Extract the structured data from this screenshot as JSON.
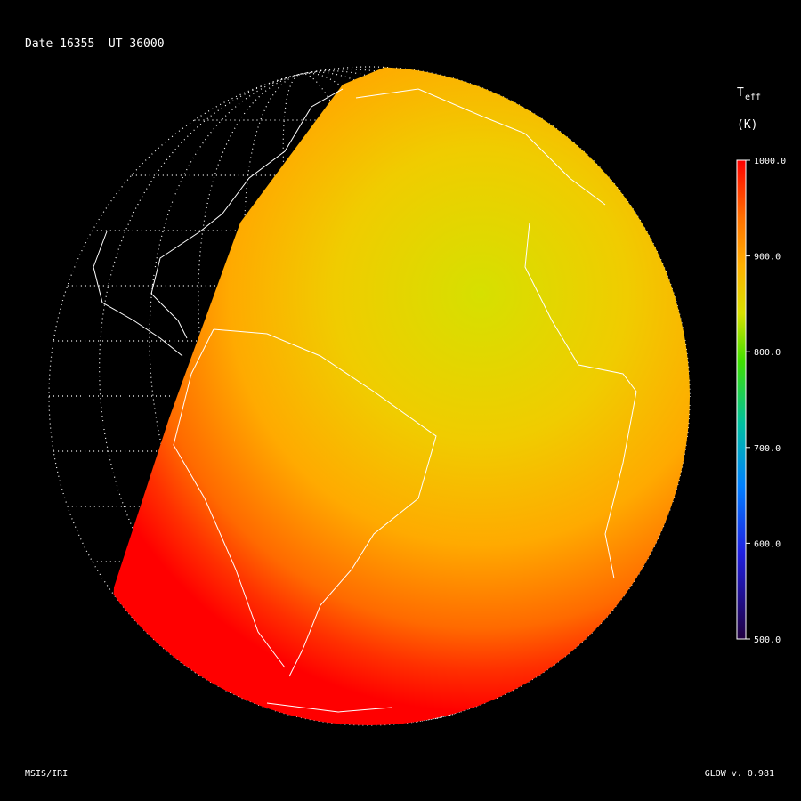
{
  "header": {
    "date_label": "Date 16355  UT 36000"
  },
  "colorbar": {
    "symbol": "T",
    "subscript": "eff",
    "unit": "(K)",
    "lim": [
      500,
      1000
    ],
    "ticks": [
      {
        "value": 1000,
        "label": "1000.0"
      },
      {
        "value": 900,
        "label": "900.0"
      },
      {
        "value": 800,
        "label": "800.0"
      },
      {
        "value": 700,
        "label": "700.0"
      },
      {
        "value": 600,
        "label": "600.0"
      },
      {
        "value": 500,
        "label": "500.0"
      }
    ]
  },
  "footer": {
    "left": "MSIS/IRI",
    "right": "GLOW v. 0.981"
  }
}
